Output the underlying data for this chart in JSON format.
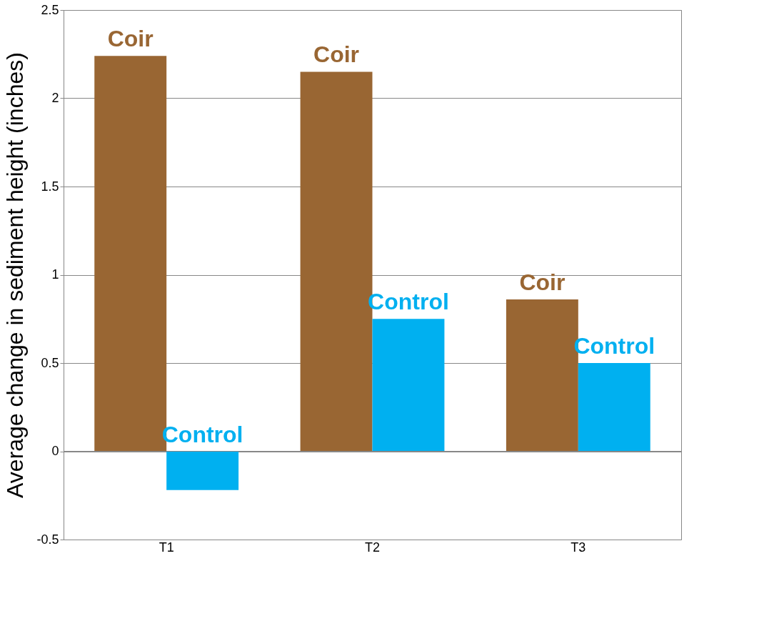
{
  "chart_data": {
    "type": "bar",
    "ylabel": "Average change in sediment height (inches)",
    "categories": [
      "T1",
      "T2",
      "T3"
    ],
    "series": [
      {
        "name": "Coir",
        "color": "#996633",
        "values": [
          2.24,
          2.15,
          0.86
        ]
      },
      {
        "name": "Control",
        "color": "#00b0f0",
        "values": [
          -0.22,
          0.75,
          0.5
        ]
      }
    ],
    "ylim": [
      -0.5,
      2.5
    ],
    "yticks": [
      -0.5,
      0,
      0.5,
      1,
      1.5,
      2,
      2.5
    ],
    "grid": "y"
  }
}
